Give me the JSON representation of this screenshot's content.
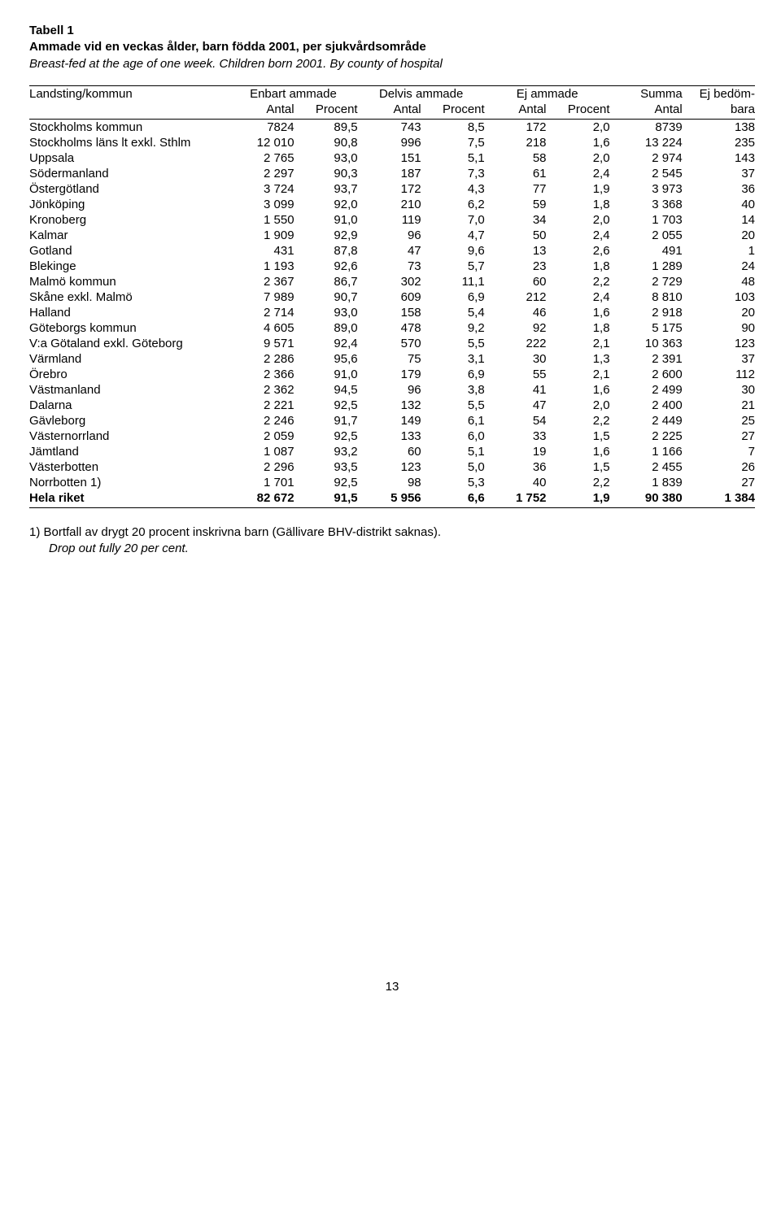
{
  "title": {
    "line1": "Tabell 1",
    "line2": "Ammade vid en veckas ålder, barn födda 2001,  per sjukvårdsområde",
    "subtitle": "Breast-fed at the age of one week. Children born 2001. By county of hospital"
  },
  "header": {
    "left": "Landsting/kommun",
    "col1": "Enbart ammade",
    "col2": "Delvis ammade",
    "col3": "Ej ammade",
    "col4": "Summa",
    "col5_a": "Ej bedöm-",
    "col5_b": "bara",
    "sub_antal": "Antal",
    "sub_procent": "Procent"
  },
  "rows": [
    {
      "label": "Stockholms kommun",
      "a1": "7824",
      "p1": "89,5",
      "a2": "743",
      "p2": "8,5",
      "a3": "172",
      "p3": "2,0",
      "sum": "8739",
      "ej": "138"
    },
    {
      "label": "Stockholms läns lt  exkl. Sthlm",
      "a1": "12 010",
      "p1": "90,8",
      "a2": "996",
      "p2": "7,5",
      "a3": "218",
      "p3": "1,6",
      "sum": "13 224",
      "ej": "235"
    },
    {
      "label": "Uppsala",
      "a1": "2 765",
      "p1": "93,0",
      "a2": "151",
      "p2": "5,1",
      "a3": "58",
      "p3": "2,0",
      "sum": "2 974",
      "ej": "143"
    },
    {
      "label": "Södermanland",
      "a1": "2 297",
      "p1": "90,3",
      "a2": "187",
      "p2": "7,3",
      "a3": "61",
      "p3": "2,4",
      "sum": "2 545",
      "ej": "37"
    },
    {
      "label": "Östergötland",
      "a1": "3 724",
      "p1": "93,7",
      "a2": "172",
      "p2": "4,3",
      "a3": "77",
      "p3": "1,9",
      "sum": "3 973",
      "ej": "36"
    },
    {
      "label": "Jönköping",
      "a1": "3 099",
      "p1": "92,0",
      "a2": "210",
      "p2": "6,2",
      "a3": "59",
      "p3": "1,8",
      "sum": "3 368",
      "ej": "40"
    },
    {
      "label": "Kronoberg",
      "a1": "1 550",
      "p1": "91,0",
      "a2": "119",
      "p2": "7,0",
      "a3": "34",
      "p3": "2,0",
      "sum": "1 703",
      "ej": "14"
    },
    {
      "label": "Kalmar",
      "a1": "1 909",
      "p1": "92,9",
      "a2": "96",
      "p2": "4,7",
      "a3": "50",
      "p3": "2,4",
      "sum": "2 055",
      "ej": "20"
    },
    {
      "label": "Gotland",
      "a1": "431",
      "p1": "87,8",
      "a2": "47",
      "p2": "9,6",
      "a3": "13",
      "p3": "2,6",
      "sum": "491",
      "ej": "1"
    },
    {
      "label": "Blekinge",
      "a1": "1 193",
      "p1": "92,6",
      "a2": "73",
      "p2": "5,7",
      "a3": "23",
      "p3": "1,8",
      "sum": "1 289",
      "ej": "24"
    },
    {
      "label": "Malmö kommun",
      "a1": "2 367",
      "p1": "86,7",
      "a2": "302",
      "p2": "11,1",
      "a3": "60",
      "p3": "2,2",
      "sum": "2 729",
      "ej": "48"
    },
    {
      "label": "Skåne exkl. Malmö",
      "a1": "7 989",
      "p1": "90,7",
      "a2": "609",
      "p2": "6,9",
      "a3": "212",
      "p3": "2,4",
      "sum": "8 810",
      "ej": "103"
    },
    {
      "label": "Halland",
      "a1": "2 714",
      "p1": "93,0",
      "a2": "158",
      "p2": "5,4",
      "a3": "46",
      "p3": "1,6",
      "sum": "2 918",
      "ej": "20"
    },
    {
      "label": "Göteborgs kommun",
      "a1": "4 605",
      "p1": "89,0",
      "a2": "478",
      "p2": "9,2",
      "a3": "92",
      "p3": "1,8",
      "sum": "5 175",
      "ej": "90"
    },
    {
      "label": "V:a Götaland exkl. Göteborg",
      "a1": "9 571",
      "p1": "92,4",
      "a2": "570",
      "p2": "5,5",
      "a3": "222",
      "p3": "2,1",
      "sum": "10 363",
      "ej": "123"
    },
    {
      "label": "Värmland",
      "a1": "2 286",
      "p1": "95,6",
      "a2": "75",
      "p2": "3,1",
      "a3": "30",
      "p3": "1,3",
      "sum": "2 391",
      "ej": "37"
    },
    {
      "label": "Örebro",
      "a1": "2 366",
      "p1": "91,0",
      "a2": "179",
      "p2": "6,9",
      "a3": "55",
      "p3": "2,1",
      "sum": "2 600",
      "ej": "112"
    },
    {
      "label": "Västmanland",
      "a1": "2 362",
      "p1": "94,5",
      "a2": "96",
      "p2": "3,8",
      "a3": "41",
      "p3": "1,6",
      "sum": "2 499",
      "ej": "30"
    },
    {
      "label": "Dalarna",
      "a1": "2 221",
      "p1": "92,5",
      "a2": "132",
      "p2": "5,5",
      "a3": "47",
      "p3": "2,0",
      "sum": "2 400",
      "ej": "21"
    },
    {
      "label": "Gävleborg",
      "a1": "2 246",
      "p1": "91,7",
      "a2": "149",
      "p2": "6,1",
      "a3": "54",
      "p3": "2,2",
      "sum": "2 449",
      "ej": "25"
    },
    {
      "label": "Västernorrland",
      "a1": "2 059",
      "p1": "92,5",
      "a2": "133",
      "p2": "6,0",
      "a3": "33",
      "p3": "1,5",
      "sum": "2 225",
      "ej": "27"
    },
    {
      "label": "Jämtland",
      "a1": "1 087",
      "p1": "93,2",
      "a2": "60",
      "p2": "5,1",
      "a3": "19",
      "p3": "1,6",
      "sum": "1 166",
      "ej": "7"
    },
    {
      "label": "Västerbotten",
      "a1": "2 296",
      "p1": "93,5",
      "a2": "123",
      "p2": "5,0",
      "a3": "36",
      "p3": "1,5",
      "sum": "2 455",
      "ej": "26"
    },
    {
      "label": "Norrbotten 1)",
      "a1": "1 701",
      "p1": "92,5",
      "a2": "98",
      "p2": "5,3",
      "a3": "40",
      "p3": "2,2",
      "sum": "1 839",
      "ej": "27"
    }
  ],
  "total": {
    "label": "Hela riket",
    "a1": "82 672",
    "p1": "91,5",
    "a2": "5 956",
    "p2": "6,6",
    "a3": "1 752",
    "p3": "1,9",
    "sum": "90 380",
    "ej": "1 384"
  },
  "footnote": {
    "line1": "1)  Bortfall av drygt 20 procent inskrivna barn (Gällivare BHV-distrikt saknas).",
    "line2": "Drop out fully 20 per cent."
  },
  "page": "13"
}
